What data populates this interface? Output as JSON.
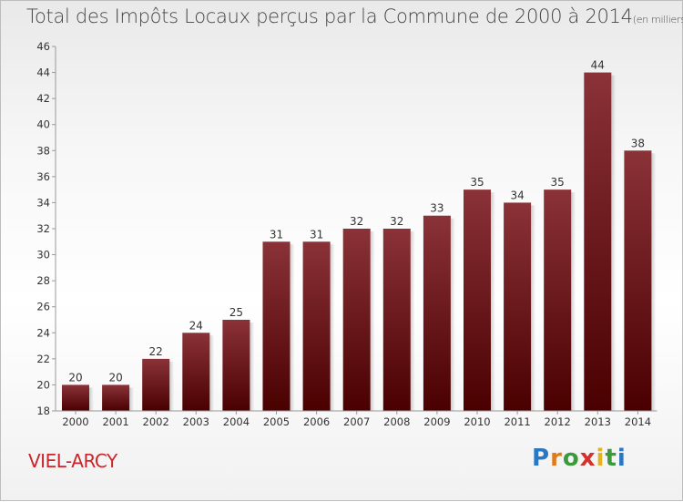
{
  "title_main": "Total des Impôts Locaux perçus par la Commune de 2000 à 2014",
  "title_unit": "(en milliers d'€)",
  "commune": "VIEL-ARCY",
  "logo": {
    "p": "P",
    "r": "r",
    "o": "o",
    "x": "x",
    "i": "i",
    "t": "t",
    "i2": "i"
  },
  "colors": {
    "bar_top": "#8a3238",
    "bar_bottom": "#4a0000",
    "commune": "#c8262b"
  },
  "chart_data": {
    "type": "bar",
    "title": "Total des Impôts Locaux perçus par la Commune de 2000 à 2014",
    "ylabel": "",
    "xlabel": "",
    "categories": [
      "2000",
      "2001",
      "2002",
      "2003",
      "2004",
      "2005",
      "2006",
      "2007",
      "2008",
      "2009",
      "2010",
      "2011",
      "2012",
      "2013",
      "2014"
    ],
    "values": [
      20,
      20,
      22,
      24,
      25,
      31,
      31,
      32,
      32,
      33,
      35,
      34,
      35,
      44,
      38
    ],
    "ylim": [
      18,
      46
    ],
    "yticks": [
      18,
      20,
      22,
      24,
      26,
      28,
      30,
      32,
      34,
      36,
      38,
      40,
      42,
      44,
      46
    ],
    "grid": false
  }
}
